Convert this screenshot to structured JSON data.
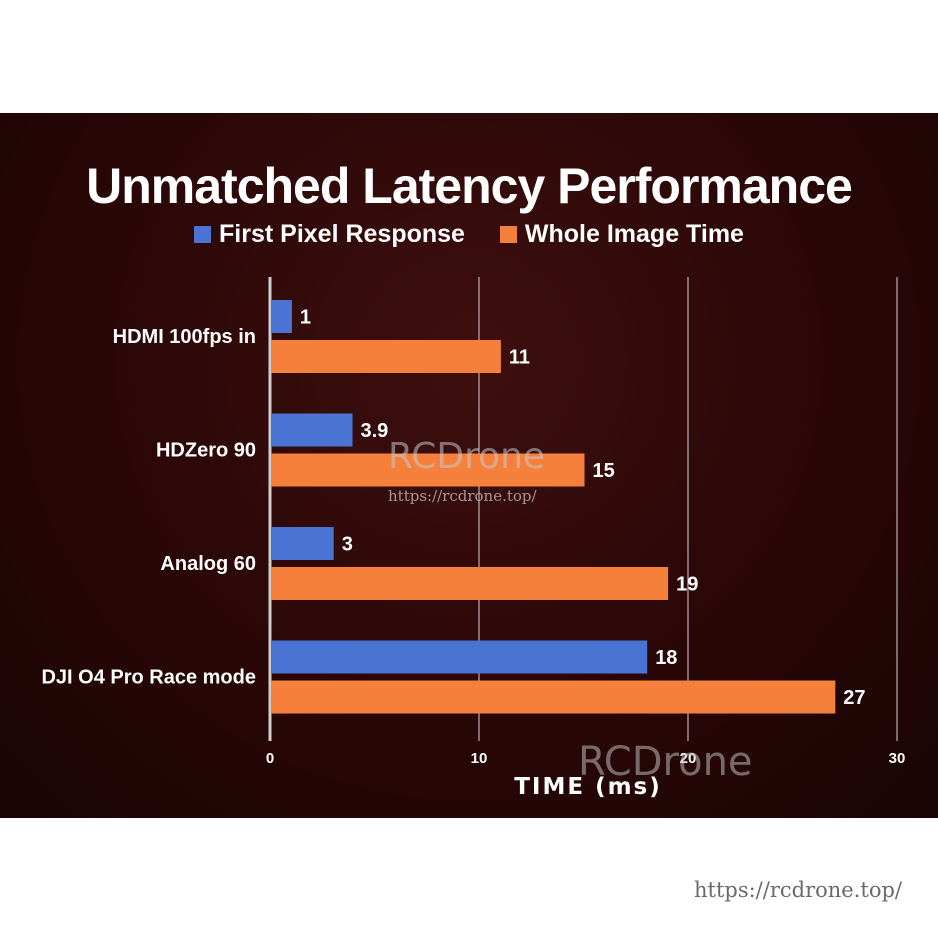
{
  "chart_data": {
    "type": "bar",
    "orientation": "horizontal",
    "title": "Unmatched Latency Performance",
    "xlabel": "TIME (ms)",
    "xlim": [
      0,
      30
    ],
    "xticks": [
      0,
      10,
      20,
      30
    ],
    "grid": true,
    "legend_position": "top-center",
    "categories": [
      "HDMI 100fps in",
      "HDZero 90",
      "Analog 60",
      "DJI O4 Pro Race mode"
    ],
    "series": [
      {
        "name": "First Pixel Response",
        "color": "#4a74d4",
        "values": [
          1,
          3.9,
          3,
          18
        ],
        "labels": [
          "1",
          "3.9",
          "3",
          "18"
        ]
      },
      {
        "name": "Whole Image Time",
        "color": "#f5803c",
        "values": [
          11,
          15,
          19,
          27
        ],
        "labels": [
          "11",
          "15",
          "19",
          "27"
        ]
      }
    ]
  },
  "watermarks": {
    "center_brand": "RCDrone",
    "center_url": "https://rcdrone.top/",
    "bottom_brand": "RCDrone"
  },
  "footer": {
    "url": "https://rcdrone.top/"
  }
}
